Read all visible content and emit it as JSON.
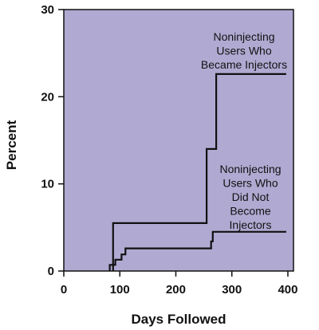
{
  "chart_data": {
    "type": "line",
    "step": true,
    "xlabel": "Days Followed",
    "ylabel": "Percent",
    "xlim": [
      0,
      410
    ],
    "ylim": [
      0,
      30
    ],
    "xticks": [
      0,
      100,
      200,
      300,
      400
    ],
    "yticks": [
      0,
      10,
      20,
      30
    ],
    "plot_background": "#b0aad2",
    "line_color": "#111111",
    "grid": false,
    "series": [
      {
        "label_lines": [
          "Noninjecting",
          "Users Who",
          "Became Injectors"
        ],
        "points": [
          [
            88,
            0
          ],
          [
            88,
            5.5
          ],
          [
            255,
            5.5
          ],
          [
            255,
            14
          ],
          [
            272,
            14
          ],
          [
            272,
            22.6
          ],
          [
            397,
            22.6
          ]
        ]
      },
      {
        "label_lines": [
          "Noninjecting",
          "Users Who",
          "Did Not",
          "Become",
          "Injectors"
        ],
        "points": [
          [
            82,
            0
          ],
          [
            82,
            0.7
          ],
          [
            92,
            0.7
          ],
          [
            92,
            1.3
          ],
          [
            103,
            1.3
          ],
          [
            103,
            1.9
          ],
          [
            110,
            1.9
          ],
          [
            110,
            2.6
          ],
          [
            263,
            2.6
          ],
          [
            263,
            3.4
          ],
          [
            266,
            3.4
          ],
          [
            266,
            4.5
          ],
          [
            397,
            4.5
          ]
        ]
      }
    ]
  }
}
